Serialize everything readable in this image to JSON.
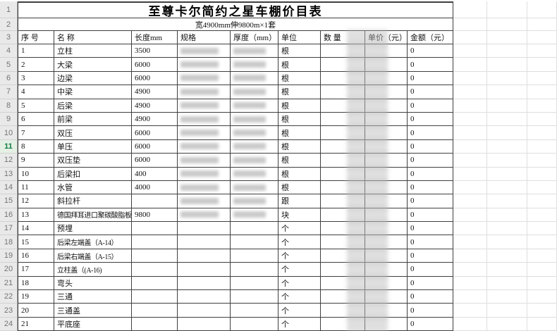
{
  "sheet": {
    "title": "至尊卡尔简约之星车棚价目表",
    "subtitle": "宽4900mm伸9800m×1套",
    "columns": [
      "序 号",
      "名 称",
      "长度mm",
      "规格",
      "厚度（mm）",
      "单位",
      "数 量",
      "单价（元）",
      "金额（元）"
    ],
    "gutter_rows": [
      "1",
      "2",
      "3",
      "4",
      "5",
      "6",
      "7",
      "8",
      "9",
      "10",
      "11",
      "12",
      "13",
      "14",
      "15",
      "16",
      "17",
      "18",
      "19",
      "20",
      "21",
      "22",
      "23",
      "24"
    ],
    "selected_gutter_row": "11",
    "rows": [
      {
        "no": "1",
        "name": "立柱",
        "length": "3500",
        "spec_blur": true,
        "thick_blur": true,
        "unit": "根",
        "qty": "",
        "price": "",
        "amount": "0"
      },
      {
        "no": "2",
        "name": "大梁",
        "length": "6000",
        "spec_blur": true,
        "thick_blur": true,
        "unit": "根",
        "qty": "",
        "price": "",
        "amount": "0"
      },
      {
        "no": "3",
        "name": "边梁",
        "length": "6000",
        "spec_blur": true,
        "thick_blur": true,
        "unit": "根",
        "qty": "",
        "price": "",
        "amount": "0"
      },
      {
        "no": "4",
        "name": "中梁",
        "length": "4900",
        "spec_blur": true,
        "thick_blur": true,
        "unit": "根",
        "qty": "",
        "price": "",
        "amount": "0"
      },
      {
        "no": "5",
        "name": "后梁",
        "length": "4900",
        "spec_blur": true,
        "thick_blur": true,
        "unit": "根",
        "qty": "",
        "price": "",
        "amount": "0"
      },
      {
        "no": "6",
        "name": "前梁",
        "length": "4900",
        "spec_blur": true,
        "thick_blur": true,
        "unit": "根",
        "qty": "",
        "price": "",
        "amount": "0"
      },
      {
        "no": "7",
        "name": "双压",
        "length": "6000",
        "spec_blur": true,
        "thick_blur": true,
        "unit": "根",
        "qty": "",
        "price": "",
        "amount": "0"
      },
      {
        "no": "8",
        "name": "单压",
        "length": "6000",
        "spec_blur": true,
        "thick_blur": true,
        "unit": "根",
        "qty": "",
        "price": "",
        "amount": "0"
      },
      {
        "no": "9",
        "name": "双压垫",
        "length": "6000",
        "spec_blur": true,
        "thick_blur": true,
        "unit": "根",
        "qty": "",
        "price": "",
        "amount": "0"
      },
      {
        "no": "10",
        "name": "后梁扣",
        "length": "400",
        "spec_blur": true,
        "thick_blur": true,
        "unit": "根",
        "qty": "",
        "price": "",
        "amount": "0"
      },
      {
        "no": "11",
        "name": "水管",
        "length": "4000",
        "spec_blur": true,
        "thick_blur": true,
        "unit": "根",
        "qty": "",
        "price": "",
        "amount": "0"
      },
      {
        "no": "12",
        "name": "斜拉杆",
        "length": "",
        "spec_blur": true,
        "thick_blur": true,
        "unit": "跟",
        "qty": "",
        "price": "",
        "amount": "0"
      },
      {
        "no": "13",
        "name": "德国拜耳进口聚碳酸脂板",
        "length": "9800",
        "spec_blur": true,
        "thick_blur": true,
        "unit": "块",
        "qty": "",
        "price": "",
        "amount": "0"
      },
      {
        "no": "14",
        "name": "预埋",
        "length": "",
        "spec_blur": false,
        "thick_blur": false,
        "unit": "个",
        "qty": "",
        "price": "",
        "amount": "0"
      },
      {
        "no": "15",
        "name": "后梁左端盖（A-14）",
        "length": "",
        "spec_blur": false,
        "thick_blur": false,
        "unit": "个",
        "qty": "",
        "price": "",
        "amount": "0"
      },
      {
        "no": "16",
        "name": "后梁右端盖（A-15）",
        "length": "",
        "spec_blur": false,
        "thick_blur": false,
        "unit": "个",
        "qty": "",
        "price": "",
        "amount": "0"
      },
      {
        "no": "17",
        "name": "立柱盖（(A-16)",
        "length": "",
        "spec_blur": false,
        "thick_blur": false,
        "unit": "个",
        "qty": "",
        "price": "",
        "amount": "0"
      },
      {
        "no": "18",
        "name": "弯头",
        "length": "",
        "spec_blur": false,
        "thick_blur": false,
        "unit": "个",
        "qty": "",
        "price": "",
        "amount": "0"
      },
      {
        "no": "19",
        "name": "三通",
        "length": "",
        "spec_blur": false,
        "thick_blur": false,
        "unit": "个",
        "qty": "",
        "price": "",
        "amount": "0"
      },
      {
        "no": "20",
        "name": "三通盖",
        "length": "",
        "spec_blur": false,
        "thick_blur": false,
        "unit": "个",
        "qty": "",
        "price": "",
        "amount": "0"
      },
      {
        "no": "21",
        "name": "平底座",
        "length": "",
        "spec_blur": false,
        "thick_blur": false,
        "unit": "个",
        "qty": "",
        "price": "",
        "amount": "0"
      }
    ],
    "colors": {
      "table_border": "#3f3f3f",
      "grid_line": "#dedede",
      "gutter_bg": "#e9e9e9",
      "gutter_text": "#757575",
      "selected_row_green": "#107c41",
      "redaction_gray": "#9e9e9e"
    }
  }
}
